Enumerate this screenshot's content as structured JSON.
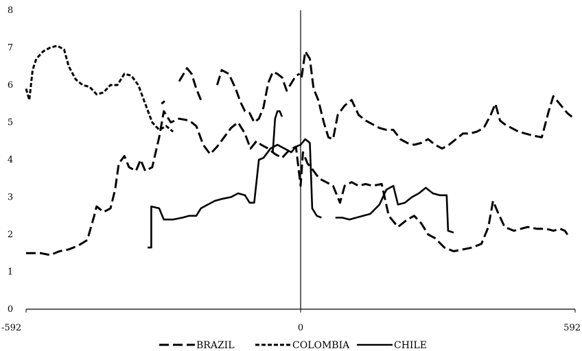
{
  "chart_data": {
    "type": "line",
    "title": "",
    "xlabel": "",
    "ylabel": "",
    "xlim": [
      -592,
      592
    ],
    "ylim": [
      0,
      8
    ],
    "x_ticks": [
      -592,
      0,
      592
    ],
    "y_ticks": [
      0,
      1,
      2,
      3,
      4,
      5,
      6,
      7,
      8
    ],
    "grid": false,
    "legend_position": "bottom",
    "vertical_reference_line_x": 0,
    "colors": {
      "line": "#000000",
      "background": "#ffffff"
    },
    "series": [
      {
        "name": "BRAZIL",
        "style": "dashed",
        "points": [
          [
            -592,
            1.5
          ],
          [
            -560,
            1.5
          ],
          [
            -540,
            1.45
          ],
          [
            -520,
            1.55
          ],
          [
            -500,
            1.6
          ],
          [
            -480,
            1.7
          ],
          [
            -460,
            1.85
          ],
          [
            -445,
            2.5
          ],
          [
            -440,
            2.75
          ],
          [
            -425,
            2.6
          ],
          [
            -410,
            2.7
          ],
          [
            -400,
            3.2
          ],
          [
            -392,
            3.9
          ],
          [
            -380,
            4.1
          ],
          [
            -370,
            3.8
          ],
          [
            -355,
            3.7
          ],
          [
            -345,
            4.0
          ],
          [
            -335,
            3.7
          ],
          [
            -320,
            3.8
          ],
          [
            -305,
            4.6
          ],
          [
            -295,
            5.3
          ],
          [
            -280,
            5.0
          ],
          [
            -262,
            5.1
          ],
          [
            -240,
            5.05
          ],
          [
            -225,
            4.9
          ],
          [
            -210,
            4.4
          ],
          [
            -195,
            4.15
          ],
          [
            -180,
            4.35
          ],
          [
            -165,
            4.6
          ],
          [
            -150,
            4.85
          ],
          [
            -135,
            5.0
          ],
          [
            -120,
            4.7
          ],
          [
            -108,
            4.3
          ],
          [
            -95,
            4.5
          ],
          [
            -85,
            4.4
          ],
          [
            -70,
            4.3
          ],
          [
            -55,
            4.15
          ],
          [
            -40,
            4.05
          ],
          [
            -25,
            4.25
          ],
          [
            -10,
            4.35
          ],
          [
            0,
            3.3
          ],
          [
            5,
            4.2
          ],
          [
            15,
            3.9
          ],
          [
            25,
            3.75
          ],
          [
            40,
            3.5
          ],
          [
            55,
            3.4
          ],
          [
            70,
            3.3
          ],
          [
            85,
            2.85
          ],
          [
            95,
            3.3
          ],
          [
            110,
            3.4
          ],
          [
            125,
            3.3
          ],
          [
            140,
            3.35
          ],
          [
            155,
            3.3
          ],
          [
            175,
            3.35
          ],
          [
            190,
            2.5
          ],
          [
            210,
            2.2
          ],
          [
            230,
            2.4
          ],
          [
            245,
            2.5
          ],
          [
            260,
            2.3
          ],
          [
            275,
            2.0
          ],
          [
            290,
            1.9
          ],
          [
            310,
            1.65
          ],
          [
            330,
            1.55
          ],
          [
            350,
            1.6
          ],
          [
            370,
            1.65
          ],
          [
            390,
            1.75
          ],
          [
            405,
            2.2
          ],
          [
            415,
            2.9
          ],
          [
            425,
            2.6
          ],
          [
            440,
            2.2
          ],
          [
            460,
            2.1
          ],
          [
            475,
            2.15
          ],
          [
            490,
            2.2
          ],
          [
            510,
            2.15
          ],
          [
            530,
            2.15
          ],
          [
            545,
            2.1
          ],
          [
            560,
            2.15
          ],
          [
            570,
            2.1
          ],
          [
            578,
            1.95
          ]
        ]
      },
      {
        "name": "COLOMBIA",
        "style": "short-dashed",
        "points": [
          [
            -592,
            5.9
          ],
          [
            -585,
            5.6
          ],
          [
            -578,
            6.4
          ],
          [
            -570,
            6.7
          ],
          [
            -555,
            6.9
          ],
          [
            -540,
            7.0
          ],
          [
            -525,
            7.05
          ],
          [
            -510,
            6.95
          ],
          [
            -500,
            6.5
          ],
          [
            -485,
            6.15
          ],
          [
            -470,
            6.0
          ],
          [
            -455,
            5.95
          ],
          [
            -440,
            5.75
          ],
          [
            -425,
            5.8
          ],
          [
            -410,
            6.0
          ],
          [
            -395,
            6.0
          ],
          [
            -380,
            6.3
          ],
          [
            -365,
            6.25
          ],
          [
            -350,
            6.0
          ],
          [
            -335,
            5.5
          ],
          [
            -320,
            5.0
          ],
          [
            -305,
            4.8
          ],
          [
            -290,
            4.9
          ],
          [
            -275,
            4.75
          ]
        ]
      },
      {
        "name": "CHILE",
        "style": "solid",
        "points": [
          [
            -330,
            1.65
          ],
          [
            -322,
            1.65
          ],
          [
            -322,
            2.75
          ],
          [
            -305,
            2.7
          ],
          [
            -295,
            2.4
          ],
          [
            -275,
            2.4
          ],
          [
            -255,
            2.45
          ],
          [
            -240,
            2.5
          ],
          [
            -225,
            2.5
          ],
          [
            -215,
            2.7
          ],
          [
            -200,
            2.8
          ],
          [
            -185,
            2.9
          ],
          [
            -170,
            2.95
          ],
          [
            -150,
            3.0
          ],
          [
            -135,
            3.1
          ],
          [
            -120,
            3.05
          ],
          [
            -110,
            2.85
          ],
          [
            -100,
            2.85
          ],
          [
            -90,
            4.0
          ],
          [
            -80,
            4.05
          ],
          [
            -65,
            4.3
          ],
          [
            -50,
            4.4
          ],
          [
            -35,
            4.3
          ],
          [
            -20,
            4.2
          ],
          [
            -10,
            4.35
          ],
          [
            0,
            4.4
          ],
          [
            10,
            4.55
          ],
          [
            20,
            4.45
          ],
          [
            25,
            2.7
          ],
          [
            35,
            2.5
          ],
          [
            45,
            2.45
          ]
        ]
      }
    ],
    "extra_segments": [
      {
        "series": "BRAZIL",
        "style": "dashed",
        "points": [
          [
            -262,
            6.1
          ],
          [
            -245,
            6.45
          ],
          [
            -235,
            6.3
          ],
          [
            -225,
            5.9
          ],
          [
            -215,
            5.6
          ]
        ]
      },
      {
        "series": "BRAZIL",
        "style": "dashed",
        "points": [
          [
            -180,
            6.0
          ],
          [
            -170,
            6.4
          ],
          [
            -155,
            6.3
          ],
          [
            -140,
            5.9
          ],
          [
            -130,
            5.55
          ],
          [
            -120,
            5.3
          ],
          [
            -110,
            5.25
          ],
          [
            -100,
            5.0
          ],
          [
            -90,
            5.1
          ],
          [
            -80,
            5.4
          ],
          [
            -70,
            6.05
          ],
          [
            -60,
            6.35
          ],
          [
            -50,
            6.3
          ],
          [
            -40,
            6.2
          ],
          [
            -30,
            5.85
          ],
          [
            -20,
            6.05
          ],
          [
            -10,
            6.25
          ],
          [
            -2,
            6.3
          ]
        ]
      },
      {
        "series": "BRAZIL",
        "style": "dashed",
        "points": [
          [
            2,
            6.2
          ],
          [
            10,
            6.9
          ],
          [
            20,
            6.7
          ],
          [
            28,
            5.9
          ],
          [
            38,
            5.6
          ],
          [
            50,
            5.0
          ],
          [
            60,
            4.6
          ],
          [
            70,
            4.55
          ],
          [
            80,
            5.2
          ],
          [
            95,
            5.45
          ],
          [
            110,
            5.6
          ],
          [
            125,
            5.2
          ],
          [
            140,
            5.05
          ],
          [
            155,
            4.95
          ],
          [
            170,
            4.85
          ],
          [
            185,
            4.8
          ],
          [
            200,
            4.8
          ],
          [
            215,
            4.55
          ],
          [
            230,
            4.45
          ],
          [
            245,
            4.4
          ],
          [
            260,
            4.45
          ],
          [
            275,
            4.55
          ],
          [
            290,
            4.4
          ],
          [
            305,
            4.3
          ],
          [
            320,
            4.4
          ],
          [
            335,
            4.55
          ],
          [
            350,
            4.7
          ],
          [
            365,
            4.7
          ],
          [
            380,
            4.75
          ],
          [
            395,
            4.85
          ],
          [
            410,
            5.2
          ],
          [
            420,
            5.5
          ],
          [
            430,
            5.05
          ],
          [
            440,
            4.95
          ],
          [
            455,
            4.85
          ],
          [
            470,
            4.75
          ],
          [
            485,
            4.7
          ],
          [
            500,
            4.65
          ],
          [
            520,
            4.6
          ],
          [
            535,
            5.3
          ],
          [
            545,
            5.7
          ],
          [
            555,
            5.55
          ],
          [
            565,
            5.4
          ],
          [
            575,
            5.25
          ],
          [
            585,
            5.15
          ]
        ]
      },
      {
        "series": "COLOMBIA",
        "style": "short-dashed",
        "points": [
          [
            -300,
            5.5
          ],
          [
            -290,
            5.6
          ]
        ]
      },
      {
        "series": "CHILE",
        "style": "solid",
        "points": [
          [
            -60,
            4.2
          ],
          [
            -55,
            5.1
          ],
          [
            -50,
            5.3
          ],
          [
            -45,
            5.3
          ],
          [
            -40,
            5.15
          ]
        ]
      },
      {
        "series": "CHILE",
        "style": "solid",
        "points": [
          [
            75,
            2.45
          ],
          [
            90,
            2.45
          ],
          [
            105,
            2.4
          ],
          [
            120,
            2.45
          ],
          [
            135,
            2.5
          ],
          [
            150,
            2.55
          ],
          [
            170,
            2.8
          ],
          [
            185,
            3.2
          ],
          [
            200,
            3.3
          ],
          [
            210,
            2.8
          ],
          [
            225,
            2.85
          ],
          [
            240,
            3.0
          ],
          [
            255,
            3.1
          ],
          [
            270,
            3.25
          ],
          [
            285,
            3.1
          ],
          [
            300,
            3.05
          ],
          [
            315,
            3.05
          ],
          [
            318,
            2.1
          ],
          [
            330,
            2.05
          ]
        ]
      }
    ]
  }
}
